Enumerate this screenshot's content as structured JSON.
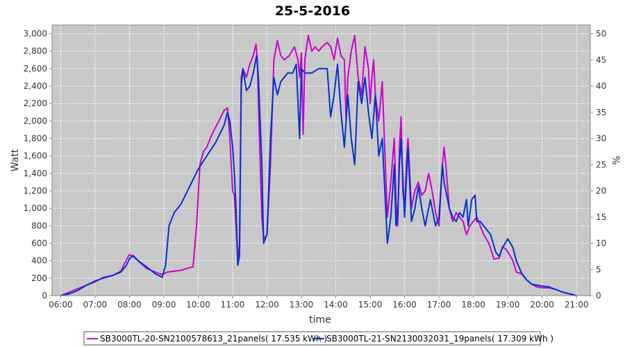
{
  "chart_data": {
    "type": "line",
    "title": "25-5-2016",
    "xlabel": "time",
    "ylabel": "Watt",
    "y2label": "%",
    "x_ticks": [
      "06:00",
      "07:00",
      "08:00",
      "09:00",
      "10:00",
      "11:00",
      "12:00",
      "13:00",
      "14:00",
      "15:00",
      "16:00",
      "17:00",
      "18:00",
      "19:00",
      "20:00",
      "21:00"
    ],
    "y_ticks": [
      "0",
      "200",
      "400",
      "600",
      "800",
      "1,000",
      "1,200",
      "1,400",
      "1,600",
      "1,800",
      "2,000",
      "2,200",
      "2,400",
      "2,600",
      "2,800",
      "3,000"
    ],
    "y2_ticks": [
      "0",
      "5",
      "10",
      "15",
      "20",
      "25",
      "30",
      "35",
      "40",
      "45",
      "50"
    ],
    "xlim": [
      5.75,
      21.4
    ],
    "ylim": [
      0,
      3100
    ],
    "y2lim": [
      0,
      51.67
    ],
    "grid": true,
    "legend_position": "bottom",
    "series": [
      {
        "name": "SB3000TL-20-SN2100578613_21panels( 17.535 kWh )",
        "color": "#cc00cc",
        "points": [
          [
            6.0,
            0
          ],
          [
            6.25,
            40
          ],
          [
            6.5,
            80
          ],
          [
            6.75,
            120
          ],
          [
            7.0,
            170
          ],
          [
            7.25,
            200
          ],
          [
            7.5,
            230
          ],
          [
            7.75,
            280
          ],
          [
            7.9,
            400
          ],
          [
            8.0,
            470
          ],
          [
            8.1,
            450
          ],
          [
            8.25,
            400
          ],
          [
            8.5,
            310
          ],
          [
            8.75,
            270
          ],
          [
            8.95,
            240
          ],
          [
            9.1,
            270
          ],
          [
            9.5,
            290
          ],
          [
            9.75,
            320
          ],
          [
            9.85,
            330
          ],
          [
            9.95,
            800
          ],
          [
            10.05,
            1500
          ],
          [
            10.15,
            1650
          ],
          [
            10.25,
            1700
          ],
          [
            10.4,
            1850
          ],
          [
            10.6,
            2000
          ],
          [
            10.75,
            2120
          ],
          [
            10.85,
            2150
          ],
          [
            10.92,
            1800
          ],
          [
            11.0,
            1200
          ],
          [
            11.05,
            1150
          ],
          [
            11.1,
            800
          ],
          [
            11.15,
            400
          ],
          [
            11.2,
            600
          ],
          [
            11.25,
            2500
          ],
          [
            11.3,
            2600
          ],
          [
            11.4,
            2500
          ],
          [
            11.5,
            2650
          ],
          [
            11.6,
            2750
          ],
          [
            11.68,
            2880
          ],
          [
            11.72,
            2700
          ],
          [
            11.78,
            1800
          ],
          [
            11.85,
            900
          ],
          [
            11.9,
            650
          ],
          [
            12.0,
            700
          ],
          [
            12.1,
            1500
          ],
          [
            12.2,
            2700
          ],
          [
            12.3,
            2920
          ],
          [
            12.4,
            2750
          ],
          [
            12.5,
            2700
          ],
          [
            12.65,
            2750
          ],
          [
            12.8,
            2850
          ],
          [
            12.9,
            2700
          ],
          [
            12.95,
            2500
          ],
          [
            13.0,
            2780
          ],
          [
            13.05,
            1850
          ],
          [
            13.1,
            2700
          ],
          [
            13.2,
            2980
          ],
          [
            13.3,
            2800
          ],
          [
            13.4,
            2850
          ],
          [
            13.5,
            2800
          ],
          [
            13.6,
            2850
          ],
          [
            13.75,
            2900
          ],
          [
            13.85,
            2850
          ],
          [
            13.95,
            2700
          ],
          [
            14.05,
            2950
          ],
          [
            14.15,
            2750
          ],
          [
            14.25,
            2700
          ],
          [
            14.3,
            2000
          ],
          [
            14.35,
            2500
          ],
          [
            14.45,
            2800
          ],
          [
            14.55,
            2980
          ],
          [
            14.65,
            2500
          ],
          [
            14.75,
            2300
          ],
          [
            14.85,
            2850
          ],
          [
            14.95,
            2600
          ],
          [
            15.0,
            2200
          ],
          [
            15.05,
            2500
          ],
          [
            15.1,
            2700
          ],
          [
            15.15,
            2300
          ],
          [
            15.25,
            2000
          ],
          [
            15.35,
            2450
          ],
          [
            15.45,
            1400
          ],
          [
            15.5,
            900
          ],
          [
            15.6,
            1300
          ],
          [
            15.7,
            1800
          ],
          [
            15.75,
            1100
          ],
          [
            15.8,
            800
          ],
          [
            15.85,
            1700
          ],
          [
            15.9,
            2050
          ],
          [
            15.95,
            1200
          ],
          [
            16.0,
            1000
          ],
          [
            16.05,
            1500
          ],
          [
            16.1,
            1800
          ],
          [
            16.15,
            1400
          ],
          [
            16.2,
            1000
          ],
          [
            16.3,
            1200
          ],
          [
            16.4,
            1300
          ],
          [
            16.5,
            1150
          ],
          [
            16.6,
            1200
          ],
          [
            16.7,
            1400
          ],
          [
            16.8,
            1200
          ],
          [
            16.9,
            950
          ],
          [
            17.0,
            800
          ],
          [
            17.1,
            1500
          ],
          [
            17.15,
            1700
          ],
          [
            17.2,
            1500
          ],
          [
            17.3,
            1000
          ],
          [
            17.4,
            850
          ],
          [
            17.5,
            950
          ],
          [
            17.6,
            900
          ],
          [
            17.7,
            850
          ],
          [
            17.8,
            700
          ],
          [
            17.9,
            800
          ],
          [
            18.0,
            850
          ],
          [
            18.1,
            900
          ],
          [
            18.2,
            800
          ],
          [
            18.3,
            700
          ],
          [
            18.45,
            600
          ],
          [
            18.6,
            420
          ],
          [
            18.75,
            430
          ],
          [
            18.85,
            560
          ],
          [
            18.95,
            530
          ],
          [
            19.05,
            470
          ],
          [
            19.15,
            400
          ],
          [
            19.25,
            270
          ],
          [
            19.4,
            250
          ],
          [
            19.55,
            180
          ],
          [
            19.7,
            130
          ],
          [
            19.85,
            100
          ],
          [
            20.0,
            90
          ],
          [
            20.2,
            90
          ],
          [
            20.4,
            70
          ],
          [
            20.6,
            40
          ],
          [
            20.8,
            20
          ],
          [
            21.0,
            0
          ]
        ]
      },
      {
        "name": "SB3000TL-21-SN2130032031_19panels( 17.309 kWh )",
        "color": "#0033cc",
        "points": [
          [
            6.0,
            0
          ],
          [
            6.25,
            20
          ],
          [
            6.5,
            60
          ],
          [
            6.75,
            120
          ],
          [
            7.0,
            160
          ],
          [
            7.25,
            210
          ],
          [
            7.5,
            230
          ],
          [
            7.75,
            270
          ],
          [
            7.9,
            340
          ],
          [
            8.0,
            420
          ],
          [
            8.1,
            460
          ],
          [
            8.25,
            400
          ],
          [
            8.5,
            330
          ],
          [
            8.75,
            250
          ],
          [
            8.95,
            210
          ],
          [
            9.05,
            350
          ],
          [
            9.15,
            800
          ],
          [
            9.3,
            950
          ],
          [
            9.5,
            1050
          ],
          [
            9.75,
            1250
          ],
          [
            10.0,
            1450
          ],
          [
            10.25,
            1600
          ],
          [
            10.5,
            1750
          ],
          [
            10.75,
            1950
          ],
          [
            10.85,
            2100
          ],
          [
            10.92,
            2000
          ],
          [
            11.0,
            1700
          ],
          [
            11.05,
            1400
          ],
          [
            11.1,
            1000
          ],
          [
            11.15,
            350
          ],
          [
            11.2,
            450
          ],
          [
            11.25,
            2400
          ],
          [
            11.3,
            2600
          ],
          [
            11.4,
            2350
          ],
          [
            11.5,
            2400
          ],
          [
            11.6,
            2550
          ],
          [
            11.7,
            2750
          ],
          [
            11.75,
            2500
          ],
          [
            11.85,
            1500
          ],
          [
            11.9,
            600
          ],
          [
            12.0,
            700
          ],
          [
            12.1,
            1800
          ],
          [
            12.2,
            2500
          ],
          [
            12.3,
            2300
          ],
          [
            12.4,
            2450
          ],
          [
            12.5,
            2500
          ],
          [
            12.6,
            2550
          ],
          [
            12.75,
            2550
          ],
          [
            12.85,
            2650
          ],
          [
            12.95,
            1800
          ],
          [
            13.0,
            2600
          ],
          [
            13.1,
            2550
          ],
          [
            13.2,
            2550
          ],
          [
            13.3,
            2550
          ],
          [
            13.5,
            2600
          ],
          [
            13.75,
            2600
          ],
          [
            13.85,
            2050
          ],
          [
            13.95,
            2300
          ],
          [
            14.05,
            2650
          ],
          [
            14.15,
            2100
          ],
          [
            14.25,
            1700
          ],
          [
            14.35,
            2300
          ],
          [
            14.45,
            1800
          ],
          [
            14.55,
            1500
          ],
          [
            14.65,
            2450
          ],
          [
            14.75,
            2200
          ],
          [
            14.85,
            2500
          ],
          [
            14.95,
            2100
          ],
          [
            15.05,
            1800
          ],
          [
            15.15,
            2300
          ],
          [
            15.25,
            1600
          ],
          [
            15.35,
            1800
          ],
          [
            15.45,
            1000
          ],
          [
            15.5,
            600
          ],
          [
            15.6,
            900
          ],
          [
            15.7,
            1500
          ],
          [
            15.75,
            800
          ],
          [
            15.8,
            900
          ],
          [
            15.85,
            1500
          ],
          [
            15.9,
            1800
          ],
          [
            16.0,
            900
          ],
          [
            16.1,
            1700
          ],
          [
            16.2,
            850
          ],
          [
            16.3,
            1000
          ],
          [
            16.4,
            1250
          ],
          [
            16.5,
            1000
          ],
          [
            16.6,
            800
          ],
          [
            16.75,
            1100
          ],
          [
            16.9,
            800
          ],
          [
            17.0,
            900
          ],
          [
            17.1,
            1500
          ],
          [
            17.15,
            1300
          ],
          [
            17.2,
            1200
          ],
          [
            17.3,
            1000
          ],
          [
            17.4,
            900
          ],
          [
            17.5,
            850
          ],
          [
            17.6,
            950
          ],
          [
            17.7,
            900
          ],
          [
            17.8,
            1100
          ],
          [
            17.85,
            800
          ],
          [
            17.95,
            1100
          ],
          [
            18.05,
            1150
          ],
          [
            18.1,
            850
          ],
          [
            18.2,
            850
          ],
          [
            18.3,
            800
          ],
          [
            18.5,
            700
          ],
          [
            18.65,
            500
          ],
          [
            18.75,
            450
          ],
          [
            18.85,
            550
          ],
          [
            19.0,
            650
          ],
          [
            19.15,
            550
          ],
          [
            19.25,
            400
          ],
          [
            19.4,
            260
          ],
          [
            19.55,
            180
          ],
          [
            19.7,
            130
          ],
          [
            19.85,
            120
          ],
          [
            20.0,
            110
          ],
          [
            20.2,
            100
          ],
          [
            20.4,
            70
          ],
          [
            20.6,
            40
          ],
          [
            20.8,
            20
          ],
          [
            21.0,
            0
          ]
        ]
      }
    ]
  }
}
